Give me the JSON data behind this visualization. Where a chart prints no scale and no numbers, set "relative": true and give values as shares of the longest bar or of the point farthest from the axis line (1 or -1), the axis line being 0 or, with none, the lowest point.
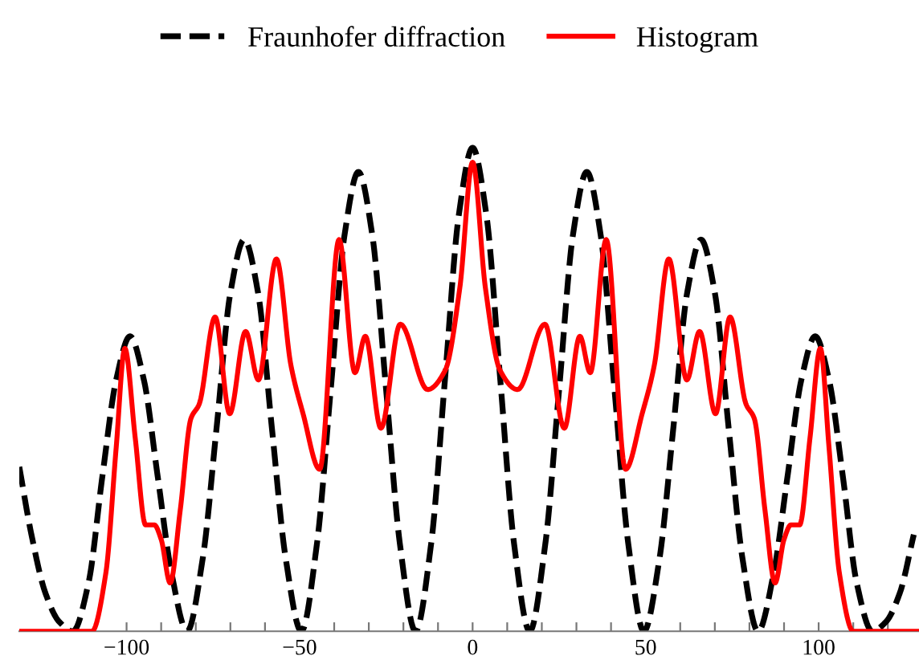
{
  "chart_data": {
    "type": "line",
    "relative": true,
    "legend": "top",
    "grid": false,
    "tick_labels": "x",
    "xlim": [
      -131,
      129
    ],
    "xticks": [
      -100,
      {
        "value": -90,
        "label": null
      },
      {
        "value": -80,
        "label": null
      },
      {
        "value": -70,
        "label": null
      },
      {
        "value": -60,
        "label": null
      },
      -50,
      {
        "value": -40,
        "label": null
      },
      {
        "value": -30,
        "label": null
      },
      {
        "value": -20,
        "label": null
      },
      {
        "value": -10,
        "label": null
      },
      0,
      {
        "value": 10,
        "label": null
      },
      {
        "value": 20,
        "label": null
      },
      {
        "value": 30,
        "label": null
      },
      {
        "value": 40,
        "label": null
      },
      50,
      {
        "value": 60,
        "label": null
      },
      {
        "value": 70,
        "label": null
      },
      {
        "value": 80,
        "label": null
      },
      {
        "value": 90,
        "label": null
      },
      100,
      {
        "value": 110,
        "label": null
      },
      {
        "value": 120,
        "label": null
      }
    ],
    "series": [
      {
        "name": "Fraunhofer diffraction",
        "color": "#000000",
        "line_style": "dashed",
        "x": [
          -131,
          -127.5,
          -123.5,
          -119.5,
          -115.5,
          -111,
          -107,
          -103,
          -99,
          -95,
          -91,
          -87,
          -82.5,
          -78,
          -74,
          -70,
          -66,
          -62,
          -58,
          -54,
          -49.5,
          -45,
          -41,
          -37,
          -33,
          -29,
          -25,
          -21,
          -16.5,
          -12,
          -8,
          -4,
          0,
          4,
          8,
          12,
          16.5,
          21,
          25,
          29,
          33,
          37,
          41,
          45,
          49.5,
          54,
          58,
          62,
          66,
          70,
          74,
          78,
          82.5,
          87,
          91,
          95,
          99,
          103,
          107,
          111,
          115.5,
          119.5,
          123.5,
          127.5
        ],
        "values": [
          0.34,
          0.2,
          0.08,
          0.02,
          0,
          0.1,
          0.32,
          0.52,
          0.61,
          0.52,
          0.32,
          0.12,
          0,
          0.15,
          0.42,
          0.7,
          0.81,
          0.7,
          0.42,
          0.15,
          0,
          0.18,
          0.5,
          0.82,
          0.95,
          0.82,
          0.5,
          0.18,
          0,
          0.18,
          0.52,
          0.86,
          1.0,
          0.86,
          0.52,
          0.18,
          0,
          0.18,
          0.5,
          0.82,
          0.95,
          0.82,
          0.5,
          0.18,
          0,
          0.15,
          0.42,
          0.7,
          0.81,
          0.7,
          0.42,
          0.15,
          0,
          0.12,
          0.32,
          0.52,
          0.61,
          0.52,
          0.32,
          0.1,
          0,
          0.02,
          0.08,
          0.2
        ]
      },
      {
        "name": "Histogram",
        "color": "#ff0000",
        "line_style": "solid",
        "x": [
          -131,
          -110,
          -106,
          -103,
          -100.5,
          -97.5,
          -94.5,
          -92,
          -90,
          -87.4,
          -84.5,
          -81.4,
          -79,
          -74.4,
          -70.2,
          -65.6,
          -61.9,
          -56.7,
          -52.5,
          -49,
          -44.2,
          -38.6,
          -34,
          -31,
          -26.5,
          -20.9,
          -13,
          -7.9,
          -3.7,
          0,
          3.7,
          7.9,
          13,
          20.9,
          26.5,
          31,
          34,
          38.6,
          44.2,
          49,
          52.5,
          56.7,
          61.9,
          65.6,
          70.2,
          74.4,
          79,
          81.4,
          84.5,
          87.4,
          90,
          92,
          94.5,
          97.5,
          100.5,
          103,
          106,
          110,
          129
        ],
        "values": [
          0,
          0,
          0.12,
          0.38,
          0.585,
          0.4,
          0.22,
          0.22,
          0.19,
          0.1,
          0.25,
          0.44,
          0.47,
          0.65,
          0.45,
          0.62,
          0.52,
          0.77,
          0.55,
          0.45,
          0.335,
          0.81,
          0.535,
          0.61,
          0.42,
          0.635,
          0.5,
          0.54,
          0.71,
          0.97,
          0.71,
          0.54,
          0.5,
          0.635,
          0.42,
          0.61,
          0.535,
          0.81,
          0.335,
          0.45,
          0.55,
          0.77,
          0.52,
          0.62,
          0.45,
          0.65,
          0.47,
          0.44,
          0.25,
          0.1,
          0.19,
          0.22,
          0.22,
          0.4,
          0.585,
          0.38,
          0.12,
          0,
          0
        ]
      }
    ]
  }
}
